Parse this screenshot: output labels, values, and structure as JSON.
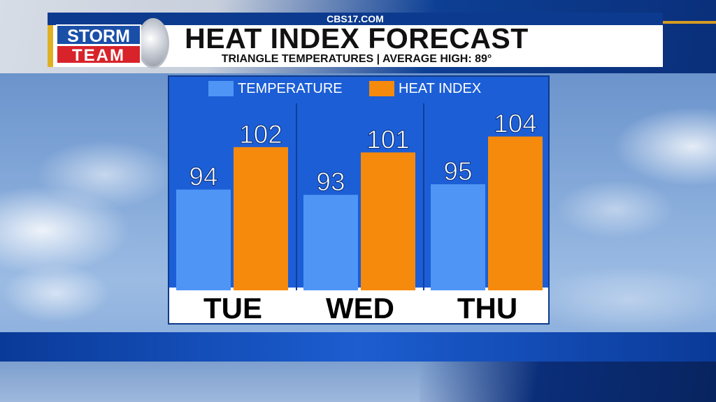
{
  "header": {
    "site": "CBS17.COM",
    "title": "HEAT INDEX FORECAST",
    "subtitle": "TRIANGLE TEMPERATURES | AVERAGE HIGH: 89°"
  },
  "logo": {
    "line1": "STORM",
    "line2": "TEAM"
  },
  "colors": {
    "temperature": "#4f95f5",
    "heat_index": "#f68a0c",
    "panel": "#1c5ed6"
  },
  "chart_data": {
    "type": "bar",
    "categories": [
      "TUE",
      "WED",
      "THU"
    ],
    "series": [
      {
        "name": "TEMPERATURE",
        "values": [
          94,
          93,
          95
        ]
      },
      {
        "name": "HEAT INDEX",
        "values": [
          102,
          101,
          104
        ]
      }
    ],
    "title": "HEAT INDEX FORECAST",
    "subtitle": "TRIANGLE TEMPERATURES | AVERAGE HIGH: 89°",
    "legend": "top",
    "grid": false,
    "ylim": [
      75,
      110
    ]
  }
}
